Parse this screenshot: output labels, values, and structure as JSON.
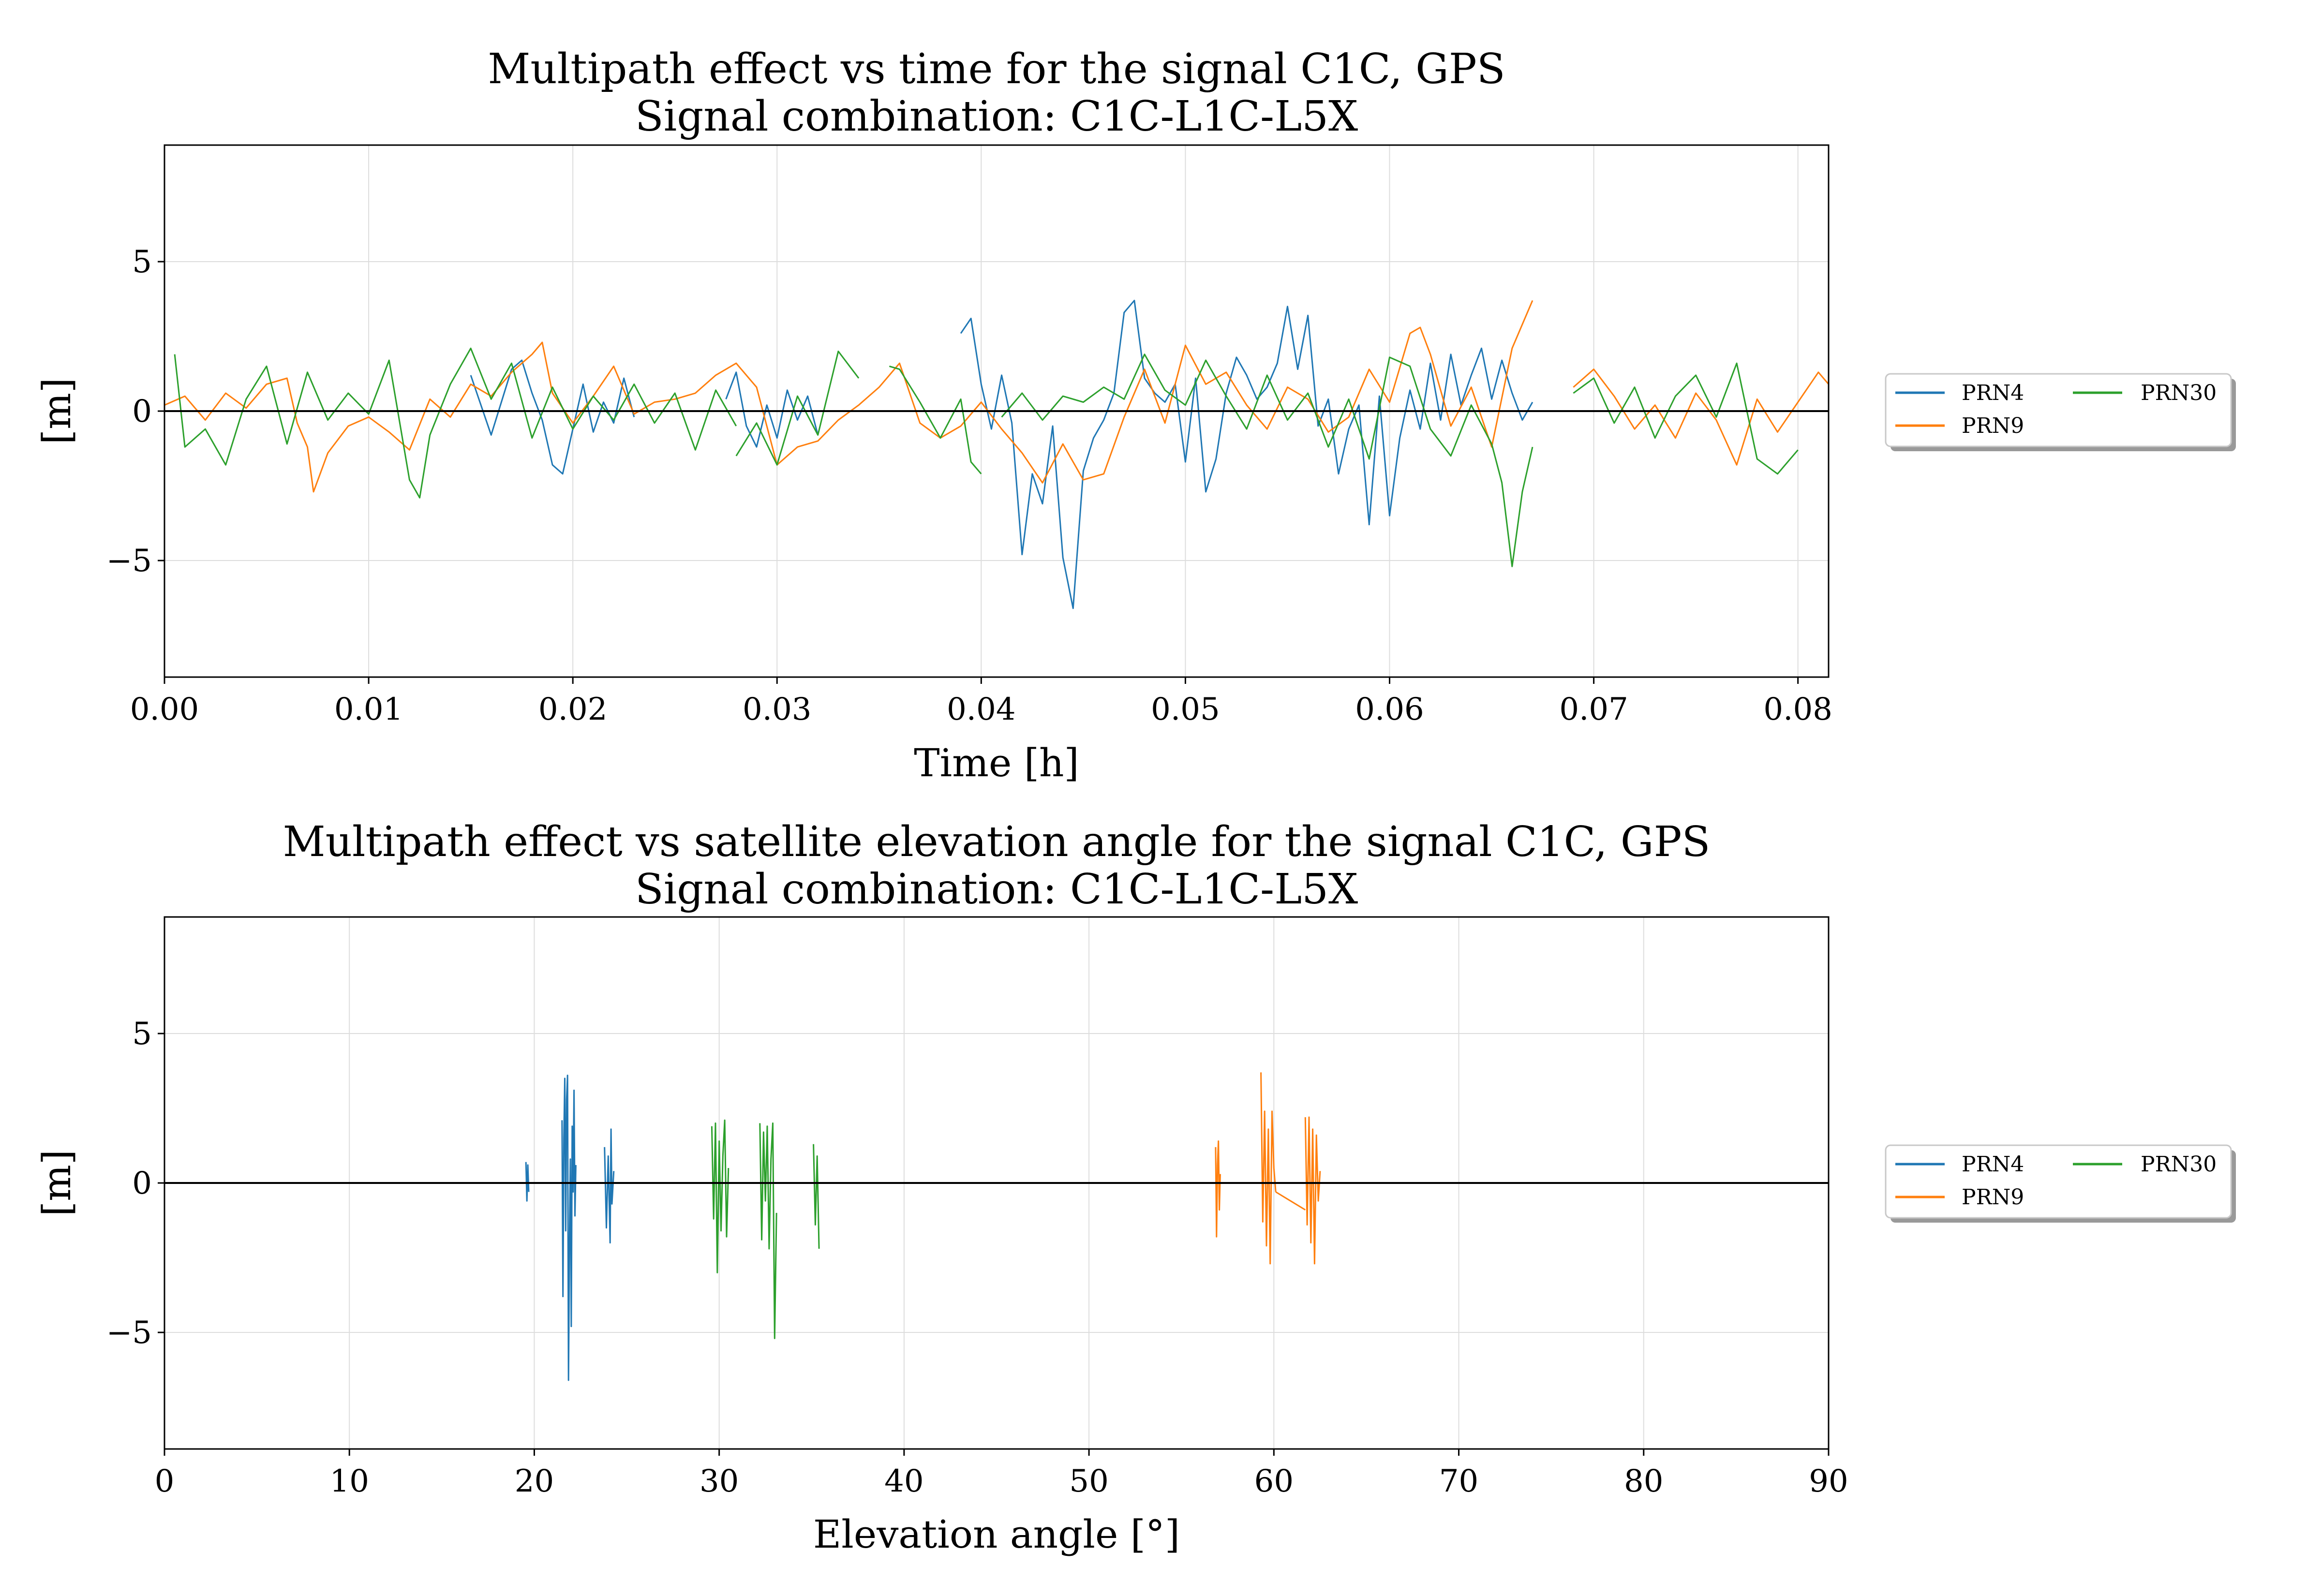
{
  "colors": {
    "PRN4": "#1f77b4",
    "PRN9": "#ff7f0e",
    "PRN30": "#2ca02c",
    "grid": "#dddddd",
    "zero_line": "#000000"
  },
  "chart_data": [
    {
      "type": "line",
      "title": "Multipath effect vs time for the signal C1C, GPS",
      "subtitle": "Signal combination: C1C-L1C-L5X",
      "xlabel": "Time [h]",
      "ylabel": "[m]",
      "xlim": [
        0.0,
        0.0815
      ],
      "ylim": [
        -8.9,
        8.9
      ],
      "xticks": [
        0.0,
        0.01,
        0.02,
        0.03,
        0.04,
        0.05,
        0.06,
        0.07,
        0.08
      ],
      "xtick_labels": [
        "0.00",
        "0.01",
        "0.02",
        "0.03",
        "0.04",
        "0.05",
        "0.06",
        "0.07",
        "0.08"
      ],
      "yticks": [
        -5,
        0,
        5
      ],
      "ytick_labels": [
        "−5",
        "0",
        "5"
      ],
      "grid": true,
      "legend_position": "right",
      "series": [
        {
          "name": "PRN4",
          "segments": [
            {
              "x": [
                0.015,
                0.016,
                0.017,
                0.0175,
                0.018,
                0.0185,
                0.019,
                0.0195,
                0.02,
                0.0205,
                0.021,
                0.0215,
                0.022,
                0.0225,
                0.023
              ],
              "y": [
                1.2,
                -0.8,
                1.4,
                1.7,
                0.6,
                -0.3,
                -1.8,
                -2.1,
                -0.6,
                0.9,
                -0.7,
                0.3,
                -0.4,
                1.1,
                -0.2
              ]
            },
            {
              "x": [
                0.0275,
                0.028,
                0.0285,
                0.029,
                0.0295,
                0.03,
                0.0305,
                0.031,
                0.0315,
                0.032
              ],
              "y": [
                0.4,
                1.3,
                -0.5,
                -1.2,
                0.2,
                -0.9,
                0.7,
                -0.3,
                0.5,
                -0.8
              ]
            },
            {
              "x": [
                0.039,
                0.0395,
                0.04,
                0.0405,
                0.041,
                0.0415,
                0.042,
                0.0425,
                0.043,
                0.0435,
                0.044,
                0.0445,
                0.045,
                0.0455,
                0.046,
                0.0465,
                0.047,
                0.0475,
                0.048,
                0.0485,
                0.049,
                0.0495,
                0.05,
                0.0505,
                0.051,
                0.0515,
                0.052,
                0.0525,
                0.053,
                0.0535,
                0.054,
                0.0545,
                0.055,
                0.0555,
                0.056,
                0.0565,
                0.057,
                0.0575,
                0.058,
                0.0585,
                0.059,
                0.0595,
                0.06,
                0.0605,
                0.061,
                0.0615,
                0.062,
                0.0625,
                0.063,
                0.0635,
                0.064,
                0.0645,
                0.065,
                0.0655,
                0.066,
                0.0665,
                0.067
              ],
              "y": [
                2.6,
                3.1,
                0.9,
                -0.6,
                1.2,
                -0.4,
                -4.8,
                -2.1,
                -3.1,
                -0.5,
                -4.9,
                -6.6,
                -2.0,
                -0.9,
                -0.3,
                0.6,
                3.3,
                3.7,
                1.1,
                0.6,
                0.3,
                0.9,
                -1.7,
                1.1,
                -2.7,
                -1.6,
                0.6,
                1.8,
                1.2,
                0.4,
                0.8,
                1.6,
                3.5,
                1.4,
                3.2,
                -0.5,
                0.4,
                -2.1,
                -0.6,
                0.2,
                -3.8,
                0.5,
                -3.5,
                -0.9,
                0.7,
                -0.6,
                1.6,
                -0.3,
                1.9,
                0.2,
                1.2,
                2.1,
                0.4,
                1.7,
                0.6,
                -0.3,
                0.3
              ]
            }
          ]
        },
        {
          "name": "PRN9",
          "segments": [
            {
              "x": [
                0.0,
                0.001,
                0.002,
                0.003,
                0.004,
                0.005,
                0.006,
                0.0065,
                0.007,
                0.0073,
                0.008,
                0.009,
                0.01,
                0.011,
                0.012,
                0.013,
                0.014,
                0.015,
                0.016,
                0.017,
                0.018,
                0.0185,
                0.019,
                0.02,
                0.021,
                0.022,
                0.023,
                0.024,
                0.025,
                0.026,
                0.027,
                0.028,
                0.029,
                0.03,
                0.031,
                0.032,
                0.033,
                0.034,
                0.035,
                0.036,
                0.037,
                0.038,
                0.039,
                0.04,
                0.041,
                0.042,
                0.043,
                0.044,
                0.045,
                0.046,
                0.047,
                0.048,
                0.049,
                0.05,
                0.051,
                0.052,
                0.053,
                0.054,
                0.055,
                0.056,
                0.057,
                0.058,
                0.059,
                0.06,
                0.061,
                0.0615,
                0.062,
                0.063,
                0.064,
                0.065,
                0.066,
                0.067
              ],
              "y": [
                0.2,
                0.5,
                -0.3,
                0.6,
                0.1,
                0.9,
                1.1,
                -0.4,
                -1.2,
                -2.7,
                -1.4,
                -0.5,
                -0.2,
                -0.7,
                -1.3,
                0.4,
                -0.2,
                0.9,
                0.5,
                1.3,
                1.9,
                2.3,
                0.6,
                -0.4,
                0.5,
                1.5,
                -0.1,
                0.3,
                0.4,
                0.6,
                1.2,
                1.6,
                0.8,
                -1.8,
                -1.2,
                -1.0,
                -0.3,
                0.2,
                0.8,
                1.6,
                -0.4,
                -0.9,
                -0.5,
                0.3,
                -0.6,
                -1.4,
                -2.4,
                -1.1,
                -2.3,
                -2.1,
                -0.2,
                1.4,
                -0.4,
                2.2,
                0.9,
                1.3,
                0.2,
                -0.6,
                0.8,
                0.4,
                -0.7,
                -0.2,
                1.4,
                0.3,
                2.6,
                2.8,
                1.9,
                -0.5,
                0.8,
                -1.2,
                2.1,
                3.7
              ]
            },
            {
              "x": [
                0.069,
                0.07,
                0.071,
                0.072,
                0.073,
                0.074,
                0.075,
                0.076,
                0.077,
                0.078,
                0.079,
                0.08,
                0.081,
                0.0815
              ],
              "y": [
                0.8,
                1.4,
                0.5,
                -0.6,
                0.2,
                -0.9,
                0.6,
                -0.3,
                -1.8,
                0.4,
                -0.7,
                0.3,
                1.3,
                0.9
              ]
            }
          ]
        },
        {
          "name": "PRN30",
          "segments": [
            {
              "x": [
                0.0005,
                0.001,
                0.002,
                0.003,
                0.004,
                0.005,
                0.006,
                0.007,
                0.008,
                0.009,
                0.01,
                0.011,
                0.012,
                0.0125,
                0.013,
                0.014,
                0.015,
                0.016,
                0.017,
                0.018,
                0.019,
                0.02,
                0.021,
                0.022,
                0.023,
                0.024,
                0.025,
                0.026,
                0.027,
                0.028
              ],
              "y": [
                1.9,
                -1.2,
                -0.6,
                -1.8,
                0.4,
                1.5,
                -1.1,
                1.3,
                -0.3,
                0.6,
                -0.1,
                1.7,
                -2.3,
                -2.9,
                -0.8,
                0.9,
                2.1,
                0.4,
                1.6,
                -0.9,
                0.8,
                -0.6,
                0.5,
                -0.3,
                0.9,
                -0.4,
                0.6,
                -1.3,
                0.7,
                -0.5
              ]
            },
            {
              "x": [
                0.028,
                0.029,
                0.03,
                0.031,
                0.032,
                0.033,
                0.034
              ],
              "y": [
                -1.5,
                -0.4,
                -1.8,
                0.5,
                -0.8,
                2.0,
                1.1
              ]
            },
            {
              "x": [
                0.0355,
                0.036,
                0.037,
                0.038,
                0.039,
                0.0395,
                0.04
              ],
              "y": [
                1.5,
                1.4,
                0.3,
                -0.9,
                0.4,
                -1.7,
                -2.1
              ]
            },
            {
              "x": [
                0.041,
                0.042,
                0.043,
                0.044,
                0.045,
                0.046,
                0.047,
                0.048,
                0.049,
                0.05,
                0.051,
                0.052,
                0.053,
                0.054,
                0.055,
                0.056,
                0.057,
                0.058,
                0.059,
                0.06,
                0.061,
                0.062,
                0.063,
                0.064,
                0.065,
                0.0655,
                0.066,
                0.0665,
                0.067
              ],
              "y": [
                -0.2,
                0.6,
                -0.3,
                0.5,
                0.3,
                0.8,
                0.4,
                1.9,
                0.7,
                0.2,
                1.7,
                0.5,
                -0.6,
                1.2,
                -0.3,
                0.6,
                -1.2,
                0.4,
                -1.6,
                1.8,
                1.5,
                -0.6,
                -1.5,
                0.2,
                -1.1,
                -2.4,
                -5.2,
                -2.7,
                -1.2
              ]
            },
            {
              "x": [
                0.069,
                0.07,
                0.071,
                0.072,
                0.073,
                0.074,
                0.075,
                0.076,
                0.077,
                0.078,
                0.079,
                0.08
              ],
              "y": [
                0.6,
                1.1,
                -0.4,
                0.8,
                -0.9,
                0.5,
                1.2,
                -0.2,
                1.6,
                -1.6,
                -2.1,
                -1.3
              ]
            }
          ]
        }
      ]
    },
    {
      "type": "line",
      "title": "Multipath effect vs satellite elevation angle for the signal C1C, GPS",
      "subtitle": "Signal combination: C1C-L1C-L5X",
      "xlabel": "Elevation angle [°]",
      "ylabel": "[m]",
      "xlim": [
        0,
        90
      ],
      "ylim": [
        -8.9,
        8.9
      ],
      "xticks": [
        0,
        10,
        20,
        30,
        40,
        50,
        60,
        70,
        80,
        90
      ],
      "xtick_labels": [
        "0",
        "10",
        "20",
        "30",
        "40",
        "50",
        "60",
        "70",
        "80",
        "90"
      ],
      "yticks": [
        -5,
        0,
        5
      ],
      "ytick_labels": [
        "−5",
        "0",
        "5"
      ],
      "grid": true,
      "legend_position": "right",
      "series": [
        {
          "name": "PRN4",
          "segments": [
            {
              "x": [
                19.55,
                19.6,
                19.65,
                19.7
              ],
              "y": [
                0.7,
                -0.6,
                0.6,
                -0.3
              ]
            },
            {
              "x": [
                21.5,
                21.55,
                21.6,
                21.65,
                21.7,
                21.75,
                21.8,
                21.85,
                21.9,
                21.95,
                22.0,
                22.05,
                22.1,
                22.15,
                22.2,
                22.25
              ],
              "y": [
                2.1,
                -3.8,
                1.5,
                3.5,
                -1.6,
                2.8,
                3.6,
                -6.6,
                -2.1,
                0.8,
                -4.8,
                1.9,
                -0.3,
                3.1,
                -1.1,
                0.6
              ]
            },
            {
              "x": [
                23.8,
                23.9,
                24.0,
                24.1,
                24.15,
                24.2,
                24.3
              ],
              "y": [
                1.2,
                -1.5,
                0.9,
                -2.0,
                1.8,
                -0.7,
                0.4
              ]
            }
          ]
        },
        {
          "name": "PRN30",
          "segments": [
            {
              "x": [
                29.6,
                29.7,
                29.8,
                29.9,
                30.0,
                30.1,
                30.2,
                30.3,
                30.4,
                30.5
              ],
              "y": [
                1.9,
                -1.2,
                2.0,
                -3.0,
                1.4,
                -1.6,
                0.9,
                2.1,
                -1.8,
                0.5
              ]
            },
            {
              "x": [
                32.2,
                32.3,
                32.4,
                32.5,
                32.6,
                32.7,
                32.8,
                32.9,
                33.0,
                33.1
              ],
              "y": [
                2.0,
                -1.9,
                1.7,
                -0.6,
                1.9,
                -2.2,
                0.8,
                2.0,
                -5.2,
                -1.0
              ]
            },
            {
              "x": [
                35.1,
                35.2,
                35.3,
                35.4
              ],
              "y": [
                1.3,
                -1.4,
                0.9,
                -2.2
              ]
            }
          ]
        },
        {
          "name": "PRN9",
          "segments": [
            {
              "x": [
                56.85,
                56.9,
                56.95,
                57.0,
                57.05,
                57.1
              ],
              "y": [
                1.2,
                -1.8,
                0.6,
                1.4,
                -0.9,
                0.3
              ]
            },
            {
              "x": [
                59.3,
                59.4,
                59.5,
                59.6,
                59.7,
                59.8,
                59.9,
                60.0,
                60.1
              ],
              "y": [
                3.7,
                -1.3,
                2.4,
                -2.1,
                1.8,
                -2.7,
                2.4,
                0.5,
                -0.3
              ]
            },
            {
              "x": [
                60.1,
                61.7
              ],
              "y": [
                -0.3,
                -0.9
              ]
            },
            {
              "x": [
                61.7,
                61.8,
                61.9,
                62.0,
                62.1,
                62.2,
                62.3,
                62.4,
                62.5
              ],
              "y": [
                2.2,
                -1.4,
                2.2,
                -2.0,
                1.8,
                -2.7,
                1.6,
                -0.6,
                0.4
              ]
            }
          ]
        }
      ]
    }
  ]
}
